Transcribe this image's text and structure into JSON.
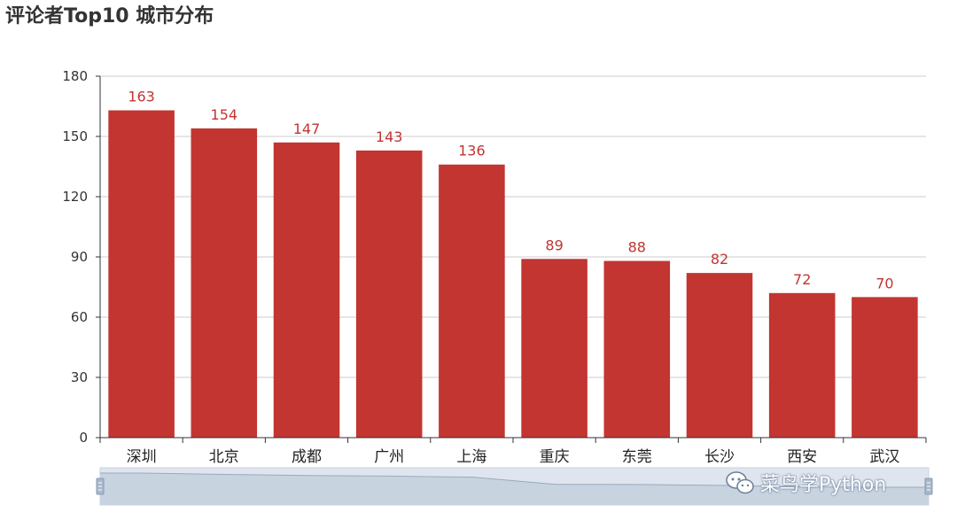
{
  "colors": {
    "bar": "#c23531",
    "grid": "#cccccc",
    "axis": "#333333",
    "zoom_track": "#dfe5ee",
    "zoom_fill": "#c8d3e0",
    "zoom_line": "#9aa9bd",
    "zoom_handle": "#a7b7cc"
  },
  "watermark": {
    "icon": "wechat-icon",
    "text": "菜鸟学Python"
  },
  "chart_data": {
    "type": "bar",
    "title": "评论者Top10 城市分布",
    "categories": [
      "深圳",
      "北京",
      "成都",
      "广州",
      "上海",
      "重庆",
      "东莞",
      "长沙",
      "西安",
      "武汉"
    ],
    "values": [
      163,
      154,
      147,
      143,
      136,
      89,
      88,
      82,
      72,
      70
    ],
    "yticks": [
      0,
      30,
      60,
      90,
      120,
      150,
      180
    ],
    "ylim": [
      0,
      180
    ],
    "grid": true,
    "data_labels": true,
    "datazoom": {
      "start": 0,
      "end": 100
    }
  }
}
